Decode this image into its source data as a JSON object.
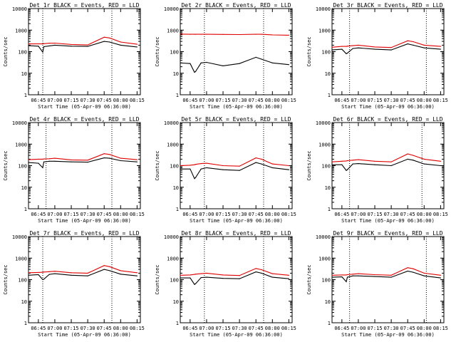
{
  "colors": {
    "events": "#000000",
    "lld": "#e00000",
    "axis": "#000000",
    "background": "#ffffff"
  },
  "chart_data": [
    {
      "type": "line",
      "title": "Det 1r BLACK = Events, RED = LLD",
      "xlabel": "Start Time (05-Apr-09 06:36:00)",
      "ylabel": "Counts/sec",
      "x_ticks": [
        "06:45",
        "07:00",
        "07:15",
        "07:30",
        "07:45",
        "08:00",
        "08:15"
      ],
      "y_ticks": [
        "1",
        "10",
        "100",
        "1000",
        "10000"
      ],
      "yscale": "log",
      "ylim": [
        1,
        10000
      ],
      "x": [
        "06:36",
        "06:45",
        "06:49",
        "06:50",
        "06:55",
        "07:00",
        "07:15",
        "07:30",
        "07:45",
        "07:50",
        "08:00",
        "08:15"
      ],
      "series": [
        {
          "name": "Events",
          "values": [
            190,
            180,
            95,
            170,
            185,
            200,
            180,
            175,
            300,
            280,
            200,
            165
          ]
        },
        {
          "name": "LLD",
          "values": [
            230,
            230,
            230,
            235,
            245,
            250,
            215,
            205,
            470,
            430,
            280,
            220
          ]
        }
      ],
      "annotations": {
        "vertical_dotted_lines": [
          "06:49",
          "07:52"
        ]
      },
      "grid": false
    },
    {
      "type": "line",
      "title": "Det 2r BLACK = Events, RED = LLD",
      "xlabel": "Start Time (05-Apr-09 06:36:00)",
      "ylabel": "Counts/sec",
      "x_ticks": [
        "06:45",
        "07:00",
        "07:15",
        "07:30",
        "07:45",
        "08:00",
        "08:15"
      ],
      "y_ticks": [
        "1",
        "10",
        "100",
        "1000",
        "10000"
      ],
      "yscale": "log",
      "ylim": [
        1,
        10000
      ],
      "x": [
        "06:36",
        "06:45",
        "06:49",
        "06:50",
        "06:55",
        "07:00",
        "07:15",
        "07:30",
        "07:45",
        "07:50",
        "08:00",
        "08:15"
      ],
      "series": [
        {
          "name": "Events",
          "values": [
            30,
            28,
            11,
            12,
            30,
            32,
            22,
            28,
            55,
            45,
            30,
            25
          ]
        },
        {
          "name": "LLD",
          "values": [
            650,
            640,
            640,
            640,
            640,
            640,
            630,
            620,
            640,
            640,
            600,
            580
          ]
        }
      ],
      "annotations": {
        "vertical_dotted_lines": [
          "06:58",
          "07:52"
        ]
      },
      "grid": false
    },
    {
      "type": "line",
      "title": "Det 3r BLACK = Events, RED = LLD",
      "xlabel": "Start Time (05-Apr-09 06:36:00)",
      "ylabel": "Counts/sec",
      "x_ticks": [
        "06:45",
        "07:00",
        "07:15",
        "07:30",
        "07:45",
        "08:00",
        "08:15"
      ],
      "y_ticks": [
        "1",
        "10",
        "100",
        "1000",
        "10000"
      ],
      "yscale": "log",
      "ylim": [
        1,
        10000
      ],
      "x": [
        "06:36",
        "06:45",
        "06:49",
        "06:50",
        "06:55",
        "07:00",
        "07:15",
        "07:30",
        "07:45",
        "07:50",
        "08:00",
        "08:15"
      ],
      "series": [
        {
          "name": "Events",
          "values": [
            120,
            130,
            80,
            85,
            140,
            150,
            130,
            120,
            230,
            200,
            150,
            130
          ]
        },
        {
          "name": "LLD",
          "values": [
            160,
            175,
            175,
            180,
            190,
            200,
            165,
            155,
            320,
            290,
            200,
            175
          ]
        }
      ],
      "annotations": {
        "vertical_dotted_lines": [
          "06:52",
          "08:02"
        ]
      },
      "grid": false
    },
    {
      "type": "line",
      "title": "Det 4r BLACK = Events, RED = LLD",
      "xlabel": "Start Time (05-Apr-09 06:36:00)",
      "ylabel": "Counts/sec",
      "x_ticks": [
        "06:45",
        "07:00",
        "07:15",
        "07:30",
        "07:45",
        "08:00",
        "08:15"
      ],
      "y_ticks": [
        "1",
        "10",
        "100",
        "1000",
        "10000"
      ],
      "yscale": "log",
      "ylim": [
        1,
        10000
      ],
      "x": [
        "06:36",
        "06:45",
        "06:49",
        "06:50",
        "06:55",
        "07:00",
        "07:15",
        "07:30",
        "07:45",
        "07:50",
        "08:00",
        "08:15"
      ],
      "series": [
        {
          "name": "Events",
          "values": [
            140,
            130,
            80,
            150,
            160,
            160,
            150,
            145,
            230,
            220,
            170,
            150
          ]
        },
        {
          "name": "LLD",
          "values": [
            190,
            200,
            200,
            205,
            210,
            220,
            185,
            180,
            360,
            330,
            220,
            190
          ]
        }
      ],
      "annotations": {
        "vertical_dotted_lines": [
          "06:52",
          "07:52"
        ]
      },
      "grid": false
    },
    {
      "type": "line",
      "title": "Det 5r BLACK = Events, RED = LLD",
      "xlabel": "Start Time (05-Apr-09 06:36:00)",
      "ylabel": "Counts/sec",
      "x_ticks": [
        "06:45",
        "07:00",
        "07:15",
        "07:30",
        "07:45",
        "08:00",
        "08:15"
      ],
      "y_ticks": [
        "1",
        "10",
        "100",
        "1000",
        "10000"
      ],
      "yscale": "log",
      "ylim": [
        1,
        10000
      ],
      "x": [
        "06:36",
        "06:45",
        "06:49",
        "06:50",
        "06:55",
        "07:00",
        "07:15",
        "07:30",
        "07:45",
        "07:50",
        "08:00",
        "08:15"
      ],
      "series": [
        {
          "name": "Events",
          "values": [
            70,
            70,
            25,
            28,
            70,
            80,
            65,
            60,
            140,
            120,
            80,
            65
          ]
        },
        {
          "name": "LLD",
          "values": [
            100,
            105,
            110,
            115,
            125,
            130,
            100,
            95,
            230,
            200,
            120,
            100
          ]
        }
      ],
      "annotations": {
        "vertical_dotted_lines": [
          "06:58",
          "07:52"
        ]
      },
      "grid": false
    },
    {
      "type": "line",
      "title": "Det 6r BLACK = Events, RED = LLD",
      "xlabel": "Start Time (05-Apr-09 06:36:00)",
      "ylabel": "Counts/sec",
      "x_ticks": [
        "06:45",
        "07:00",
        "07:15",
        "07:30",
        "07:45",
        "08:00",
        "08:15"
      ],
      "y_ticks": [
        "1",
        "10",
        "100",
        "1000",
        "10000"
      ],
      "yscale": "log",
      "ylim": [
        1,
        10000
      ],
      "x": [
        "06:36",
        "06:45",
        "06:49",
        "06:50",
        "06:55",
        "07:00",
        "07:15",
        "07:30",
        "07:45",
        "07:50",
        "08:00",
        "08:15"
      ],
      "series": [
        {
          "name": "Events",
          "values": [
            110,
            110,
            60,
            65,
            120,
            125,
            110,
            100,
            200,
            180,
            120,
            100
          ]
        },
        {
          "name": "LLD",
          "values": [
            150,
            160,
            165,
            170,
            180,
            190,
            160,
            150,
            350,
            300,
            200,
            160
          ]
        }
      ],
      "annotations": {
        "vertical_dotted_lines": [
          "06:52",
          "07:58"
        ]
      },
      "grid": false
    },
    {
      "type": "line",
      "title": "Det 7r BLACK = Events, RED = LLD",
      "xlabel": "Start Time (05-Apr-09 06:36:00)",
      "ylabel": "Counts/sec",
      "x_ticks": [
        "06:45",
        "07:00",
        "07:15",
        "07:30",
        "07:45",
        "08:00",
        "08:15"
      ],
      "y_ticks": [
        "1",
        "10",
        "100",
        "1000",
        "10000"
      ],
      "yscale": "log",
      "ylim": [
        1,
        10000
      ],
      "x": [
        "06:36",
        "06:45",
        "06:49",
        "06:50",
        "06:55",
        "07:00",
        "07:15",
        "07:30",
        "07:45",
        "07:50",
        "08:00",
        "08:15"
      ],
      "series": [
        {
          "name": "Events",
          "values": [
            160,
            170,
            100,
            105,
            175,
            190,
            160,
            150,
            300,
            260,
            180,
            150
          ]
        },
        {
          "name": "LLD",
          "values": [
            210,
            215,
            220,
            225,
            235,
            245,
            210,
            200,
            450,
            400,
            260,
            210
          ]
        }
      ],
      "annotations": {
        "vertical_dotted_lines": [
          "06:49",
          "07:52"
        ]
      },
      "grid": false
    },
    {
      "type": "line",
      "title": "Det 8r BLACK = Events, RED = LLD",
      "xlabel": "Start Time (05-Apr-09 06:36:00)",
      "ylabel": "Counts/sec",
      "x_ticks": [
        "06:45",
        "07:00",
        "07:15",
        "07:30",
        "07:45",
        "08:00",
        "08:15"
      ],
      "y_ticks": [
        "1",
        "10",
        "100",
        "1000",
        "10000"
      ],
      "yscale": "log",
      "ylim": [
        1,
        10000
      ],
      "x": [
        "06:36",
        "06:45",
        "06:49",
        "06:50",
        "06:55",
        "07:00",
        "07:15",
        "07:30",
        "07:45",
        "07:50",
        "08:00",
        "08:15"
      ],
      "series": [
        {
          "name": "Events",
          "values": [
            120,
            120,
            60,
            65,
            125,
            130,
            115,
            110,
            230,
            200,
            130,
            110
          ]
        },
        {
          "name": "LLD",
          "values": [
            160,
            165,
            175,
            180,
            190,
            200,
            165,
            155,
            330,
            290,
            190,
            160
          ]
        }
      ],
      "annotations": {
        "vertical_dotted_lines": [
          "06:58",
          "07:52"
        ]
      },
      "grid": false
    },
    {
      "type": "line",
      "title": "Det 9r BLACK = Events, RED = LLD",
      "xlabel": "Start Time (05-Apr-09 06:36:00)",
      "ylabel": "Counts/sec",
      "x_ticks": [
        "06:45",
        "07:00",
        "07:15",
        "07:30",
        "07:45",
        "08:00",
        "08:15"
      ],
      "y_ticks": [
        "1",
        "10",
        "100",
        "1000",
        "10000"
      ],
      "yscale": "log",
      "ylim": [
        1,
        10000
      ],
      "x": [
        "06:36",
        "06:45",
        "06:49",
        "06:50",
        "06:55",
        "07:00",
        "07:15",
        "07:30",
        "07:45",
        "07:50",
        "08:00",
        "08:15"
      ],
      "series": [
        {
          "name": "Events",
          "values": [
            130,
            135,
            80,
            130,
            150,
            150,
            140,
            130,
            250,
            220,
            150,
            120
          ]
        },
        {
          "name": "LLD",
          "values": [
            160,
            165,
            165,
            170,
            180,
            190,
            170,
            160,
            360,
            320,
            200,
            160
          ]
        }
      ],
      "annotations": {
        "vertical_dotted_lines": [
          "06:52",
          "08:02"
        ]
      },
      "grid": false
    }
  ]
}
